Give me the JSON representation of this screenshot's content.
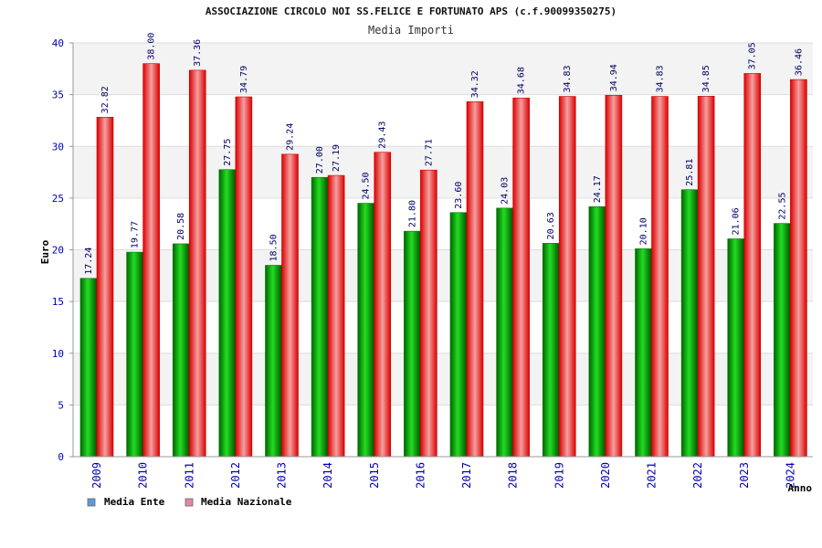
{
  "chart_data": {
    "type": "bar",
    "title": "ASSOCIAZIONE CIRCOLO NOI SS.FELICE E FORTUNATO APS (c.f.90099350275)",
    "subtitle": "Media Importi",
    "xlabel": "Anno",
    "ylabel": "Euro",
    "ylim": [
      0,
      40
    ],
    "yticks": [
      0,
      5,
      10,
      15,
      20,
      25,
      30,
      35,
      40
    ],
    "categories": [
      "2009",
      "2010",
      "2011",
      "2012",
      "2013",
      "2014",
      "2015",
      "2016",
      "2017",
      "2018",
      "2019",
      "2020",
      "2021",
      "2022",
      "2023",
      "2024"
    ],
    "series": [
      {
        "name": "Media Ente",
        "values": [
          17.24,
          19.77,
          20.58,
          27.75,
          18.5,
          27.0,
          24.5,
          21.8,
          23.6,
          24.03,
          20.63,
          24.17,
          20.1,
          25.81,
          21.06,
          22.55
        ],
        "labels": [
          "17.24",
          "19.77",
          "20.58",
          "27.75",
          "18.50",
          "27.00",
          "24.50",
          "21.80",
          "23.60",
          "24.03",
          "20.63",
          "24.17",
          "20.10",
          "25.81",
          "21.06",
          "22.55"
        ],
        "color": "#00aa00",
        "legend_color": "#5b9bd5"
      },
      {
        "name": "Media Nazionale",
        "values": [
          32.82,
          38.0,
          37.36,
          34.79,
          29.24,
          27.19,
          29.43,
          27.71,
          34.32,
          34.68,
          34.83,
          34.94,
          34.83,
          34.85,
          37.05,
          36.46
        ],
        "labels": [
          "32.82",
          "38.00",
          "37.36",
          "34.79",
          "29.24",
          "27.19",
          "29.43",
          "27.71",
          "34.32",
          "34.68",
          "34.83",
          "34.94",
          "34.83",
          "34.85",
          "37.05",
          "36.46"
        ],
        "color": "#ee1111",
        "legend_color": "#dd88aa"
      }
    ],
    "grid": true,
    "legend": "bottom-left"
  }
}
